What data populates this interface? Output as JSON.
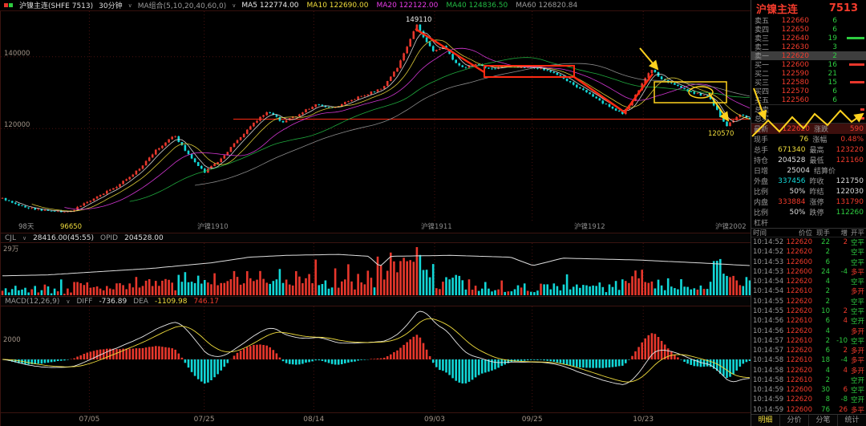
{
  "colors": {
    "up": "#e8372c",
    "down": "#12d7d7",
    "bg": "#000000",
    "ma5": "#e8e8e8",
    "ma10": "#f0dc3c",
    "ma20": "#e83ce8",
    "ma40": "#22bb44",
    "ma60": "#9a9a9a",
    "grid": "#4a1210",
    "annotation_red": "#ff2a12",
    "annotation_yellow": "#ffd21e",
    "price_line": "#ff2a12",
    "oi_line": "#dddddd",
    "diff_line": "#e8e8e8",
    "dea_line": "#f0dc3c",
    "axis_text": "#a09286"
  },
  "header": {
    "symbol": "沪镍主连(SHFE 7513)",
    "period": "30分钟",
    "caret": "∨",
    "ma_group_label": "MA组合(5,10,20,40,60,0)",
    "ma_items": [
      {
        "label": "MA5",
        "value": "122774.00",
        "color": "#e8e8e8"
      },
      {
        "label": "MA10",
        "value": "122690.00",
        "color": "#f0dc3c"
      },
      {
        "label": "MA20",
        "value": "122122.00",
        "color": "#e83ce8"
      },
      {
        "label": "MA40",
        "value": "124836.50",
        "color": "#22bb44"
      },
      {
        "label": "MA60",
        "value": "126820.84",
        "color": "#9a9a9a"
      }
    ]
  },
  "main_chart": {
    "y_labels": [
      {
        "text": "140000",
        "price": 140000
      },
      {
        "text": "120000",
        "price": 120000
      }
    ],
    "high_marker": {
      "text": "149110",
      "t": 0.554
    },
    "low_marker": {
      "text": "120570",
      "t": 0.968
    },
    "period_days": "98天",
    "lowest_label": "96650",
    "contract_markers": [
      {
        "text": "沪镍1910",
        "t": 0.262
      },
      {
        "text": "沪镍1911",
        "t": 0.56
      },
      {
        "text": "沪镍1912",
        "t": 0.764
      },
      {
        "text": "沪镍2002",
        "t": 0.952
      }
    ],
    "last_price": 122620
  },
  "x_axis": {
    "dates": [
      {
        "text": "07/05",
        "t": 0.118
      },
      {
        "text": "07/25",
        "t": 0.271
      },
      {
        "text": "08/14",
        "t": 0.417
      },
      {
        "text": "09/03",
        "t": 0.578
      },
      {
        "text": "09/25",
        "t": 0.708
      },
      {
        "text": "10/23",
        "t": 0.856
      }
    ]
  },
  "volume_panel": {
    "indicator": "CJL",
    "value": "28416.00(45:55)",
    "opid_label": "OPID",
    "opid_value": "204528.00",
    "scale_label": "29万"
  },
  "macd_panel": {
    "indicator": "MACD(12,26,9)",
    "diff_label": "DIFF",
    "diff_value": "-736.89",
    "dea_label": "DEA",
    "dea_value": "-1109.98",
    "hist_value": "746.17",
    "scale_label": "2000"
  },
  "quote_panel": {
    "title": "沪镍主连",
    "code": "7513",
    "asks": [
      {
        "label": "卖五",
        "price": "122660",
        "vol": "6",
        "bar": 0,
        "bar_color": "green"
      },
      {
        "label": "卖四",
        "price": "122650",
        "vol": "6",
        "bar": 0,
        "bar_color": "green"
      },
      {
        "label": "卖三",
        "price": "122640",
        "vol": "19",
        "bar": 22,
        "bar_color": "green"
      },
      {
        "label": "卖二",
        "price": "122630",
        "vol": "3",
        "bar": 0,
        "bar_color": "green"
      },
      {
        "label": "卖一",
        "price": "122620",
        "vol": "2",
        "bar": 0,
        "bar_color": "green",
        "highlight": true
      }
    ],
    "bids": [
      {
        "label": "买一",
        "price": "122600",
        "vol": "16",
        "bar": 19,
        "bar_color": "red"
      },
      {
        "label": "买二",
        "price": "122590",
        "vol": "21",
        "bar": 0,
        "bar_color": "red"
      },
      {
        "label": "买三",
        "price": "122580",
        "vol": "15",
        "bar": 18,
        "bar_color": "red"
      },
      {
        "label": "买四",
        "price": "122570",
        "vol": "6",
        "bar": 0,
        "bar_color": "red"
      },
      {
        "label": "买五",
        "price": "122560",
        "vol": "6",
        "bar": 0,
        "bar_color": "red"
      }
    ],
    "totals": [
      {
        "label": "总卖",
        "value": ""
      },
      {
        "label": "总买",
        "value": ""
      }
    ],
    "stats": [
      {
        "l": "最新",
        "lv": "122620",
        "lc": "red",
        "r": "涨跌",
        "rv": "590",
        "rc": "red",
        "hl": true
      },
      {
        "l": "现手",
        "lv": "76",
        "lc": "yellow",
        "r": "涨幅",
        "rv": "0.48%",
        "rc": "red"
      },
      {
        "l": "总手",
        "lv": "671340",
        "lc": "yellow",
        "r": "最高",
        "rv": "123220",
        "rc": "red"
      },
      {
        "l": "持仓",
        "lv": "204528",
        "lc": "white",
        "r": "最低",
        "rv": "121160",
        "rc": "red"
      },
      {
        "l": "日增",
        "lv": "25004",
        "lc": "white",
        "r": "结算价",
        "rv": "",
        "rc": "white"
      },
      {
        "l": "外盘",
        "lv": "337456",
        "lc": "cyan",
        "r": "昨收",
        "rv": "121750",
        "rc": "white"
      },
      {
        "l": "比例",
        "lv": "50%",
        "lc": "white",
        "r": "昨结",
        "rv": "122030",
        "rc": "white"
      },
      {
        "l": "内盘",
        "lv": "333884",
        "lc": "red",
        "r": "涨停",
        "rv": "131790",
        "rc": "red"
      },
      {
        "l": "比例",
        "lv": "50%",
        "lc": "white",
        "r": "跌停",
        "rv": "112260",
        "rc": "green"
      },
      {
        "l": "杠杆",
        "lv": "",
        "lc": "white",
        "r": "",
        "rv": "",
        "rc": "white"
      }
    ]
  },
  "tick_list": {
    "headers": [
      "时间",
      "价位",
      "现手",
      "增",
      "开平"
    ],
    "rows": [
      [
        "10:14:52",
        "122620",
        "22",
        "2",
        "空平"
      ],
      [
        "10:14:52",
        "122620",
        "2",
        "",
        "空平"
      ],
      [
        "10:14:53",
        "122600",
        "6",
        "",
        "空平"
      ],
      [
        "10:14:53",
        "122600",
        "24",
        "-4",
        "多平"
      ],
      [
        "10:14:54",
        "122620",
        "4",
        "",
        "空平"
      ],
      [
        "10:14:54",
        "122610",
        "2",
        "",
        "多开"
      ],
      [
        "10:14:55",
        "122620",
        "2",
        "",
        "空平"
      ],
      [
        "10:14:55",
        "122620",
        "10",
        "2",
        "空平"
      ],
      [
        "10:14:56",
        "122610",
        "6",
        "4",
        "空开"
      ],
      [
        "10:14:56",
        "122620",
        "4",
        "",
        "多开"
      ],
      [
        "10:14:57",
        "122610",
        "2",
        "-10",
        "空平"
      ],
      [
        "10:14:57",
        "122620",
        "6",
        "2",
        "多开"
      ],
      [
        "10:14:58",
        "122610",
        "18",
        "-4",
        "多平"
      ],
      [
        "10:14:58",
        "122620",
        "4",
        "4",
        "多开"
      ],
      [
        "10:14:58",
        "122610",
        "2",
        "",
        "空开"
      ],
      [
        "10:14:59",
        "122600",
        "30",
        "6",
        "空平"
      ],
      [
        "10:14:59",
        "122620",
        "8",
        "-8",
        "空开"
      ],
      [
        "10:14:59",
        "122600",
        "76",
        "26",
        "多平"
      ]
    ]
  },
  "tabs": [
    {
      "label": "明细",
      "active": true
    },
    {
      "label": "分价",
      "active": false
    },
    {
      "label": "分笔",
      "active": false
    },
    {
      "label": "统计",
      "active": false
    }
  ],
  "chart_data": {
    "type": "candlestick",
    "symbol": "沪镍主连",
    "period": "30分钟",
    "bars": 230,
    "price_domain": [
      95000,
      151800
    ],
    "high": 149110,
    "low": 96650,
    "recent_low": 120570,
    "last": 122620,
    "ma_periods": [
      5,
      10,
      20,
      40,
      60
    ],
    "price_anchors": [
      [
        0,
        100500
      ],
      [
        0.02,
        98500
      ],
      [
        0.055,
        97200
      ],
      [
        0.09,
        96650
      ],
      [
        0.115,
        99800
      ],
      [
        0.15,
        103500
      ],
      [
        0.185,
        109000
      ],
      [
        0.205,
        114000
      ],
      [
        0.23,
        118000
      ],
      [
        0.25,
        112500
      ],
      [
        0.27,
        107800
      ],
      [
        0.292,
        111500
      ],
      [
        0.315,
        117000
      ],
      [
        0.338,
        121800
      ],
      [
        0.355,
        124800
      ],
      [
        0.375,
        121800
      ],
      [
        0.395,
        123800
      ],
      [
        0.42,
        126800
      ],
      [
        0.44,
        125500
      ],
      [
        0.465,
        127800
      ],
      [
        0.49,
        129800
      ],
      [
        0.51,
        131500
      ],
      [
        0.53,
        137500
      ],
      [
        0.543,
        143500
      ],
      [
        0.554,
        149110
      ],
      [
        0.565,
        145000
      ],
      [
        0.578,
        141200
      ],
      [
        0.59,
        143200
      ],
      [
        0.603,
        139000
      ],
      [
        0.618,
        136900
      ],
      [
        0.635,
        137900
      ],
      [
        0.655,
        136600
      ],
      [
        0.675,
        137500
      ],
      [
        0.7,
        136900
      ],
      [
        0.72,
        136700
      ],
      [
        0.745,
        134800
      ],
      [
        0.77,
        131500
      ],
      [
        0.8,
        127500
      ],
      [
        0.83,
        124000
      ],
      [
        0.845,
        128500
      ],
      [
        0.868,
        136800
      ],
      [
        0.88,
        134000
      ],
      [
        0.9,
        132000
      ],
      [
        0.925,
        129800
      ],
      [
        0.945,
        129000
      ],
      [
        0.958,
        124500
      ],
      [
        0.968,
        120570
      ],
      [
        0.98,
        122800
      ],
      [
        0.99,
        124000
      ],
      [
        1,
        122620
      ]
    ],
    "oi_anchors": [
      [
        0,
        0.4
      ],
      [
        0.06,
        0.42
      ],
      [
        0.12,
        0.48
      ],
      [
        0.2,
        0.56
      ],
      [
        0.28,
        0.68
      ],
      [
        0.33,
        0.8
      ],
      [
        0.38,
        0.84
      ],
      [
        0.45,
        0.86
      ],
      [
        0.49,
        0.82
      ],
      [
        0.505,
        0.6
      ],
      [
        0.52,
        0.82
      ],
      [
        0.6,
        0.84
      ],
      [
        0.68,
        0.8
      ],
      [
        0.71,
        0.62
      ],
      [
        0.75,
        0.78
      ],
      [
        0.85,
        0.74
      ],
      [
        0.93,
        0.68
      ],
      [
        1,
        0.62
      ]
    ],
    "vol_anchors": [
      [
        0,
        0.5
      ],
      [
        0.3,
        0.8
      ],
      [
        0.36,
        1.0
      ],
      [
        0.5,
        1.3
      ],
      [
        0.55,
        1.2
      ],
      [
        0.6,
        0.8
      ],
      [
        0.75,
        0.7
      ],
      [
        0.9,
        0.6
      ],
      [
        0.97,
        1.1
      ],
      [
        1,
        0.9
      ]
    ]
  }
}
